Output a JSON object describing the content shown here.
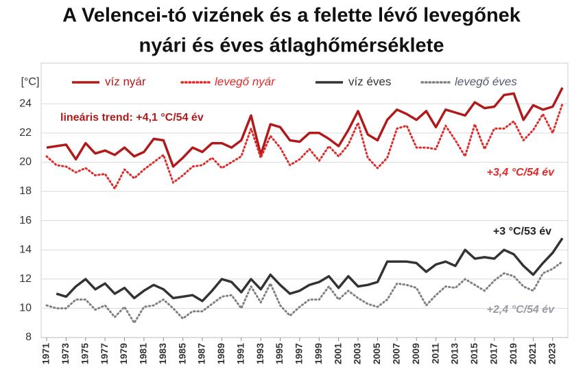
{
  "chart_data": {
    "type": "line",
    "title": "A Velencei-tó vizének és a felette lévő levegőnek",
    "subtitle": "nyári és éves átlaghőmérséklete",
    "y_label": "[°C]",
    "x": [
      1971,
      1972,
      1973,
      1974,
      1975,
      1976,
      1977,
      1978,
      1979,
      1980,
      1981,
      1982,
      1983,
      1984,
      1985,
      1986,
      1987,
      1988,
      1989,
      1990,
      1991,
      1992,
      1993,
      1994,
      1995,
      1996,
      1997,
      1998,
      1999,
      2000,
      2001,
      2002,
      2003,
      2004,
      2005,
      2006,
      2007,
      2008,
      2009,
      2010,
      2011,
      2012,
      2013,
      2014,
      2015,
      2016,
      2017,
      2018,
      2019,
      2020,
      2021,
      2022,
      2023,
      2024
    ],
    "series": [
      {
        "name": "víz nyár",
        "color": "#b01a1a",
        "dashed": false,
        "italic": false,
        "values": [
          21.0,
          21.1,
          21.2,
          20.2,
          21.3,
          20.6,
          20.8,
          20.5,
          21.0,
          20.4,
          20.7,
          21.6,
          21.5,
          19.7,
          20.3,
          21.0,
          20.7,
          21.3,
          21.3,
          21.0,
          21.5,
          23.2,
          20.5,
          22.6,
          22.4,
          21.5,
          21.4,
          22.0,
          22.0,
          21.6,
          21.1,
          22.2,
          23.5,
          21.9,
          21.5,
          22.9,
          23.6,
          23.3,
          22.9,
          23.5,
          22.4,
          23.6,
          23.4,
          23.2,
          24.1,
          23.7,
          23.8,
          24.6,
          24.7,
          22.9,
          23.9,
          23.6,
          23.8,
          25.1
        ]
      },
      {
        "name": "levegő nyár",
        "color": "#e02a2a",
        "dashed": true,
        "italic": true,
        "values": [
          20.4,
          19.8,
          19.7,
          19.3,
          19.6,
          19.1,
          19.2,
          18.2,
          19.5,
          18.9,
          19.5,
          20.0,
          20.5,
          18.6,
          19.1,
          19.7,
          19.8,
          20.3,
          19.6,
          20.0,
          20.4,
          22.3,
          20.3,
          21.8,
          21.0,
          19.8,
          20.2,
          20.9,
          20.1,
          21.1,
          20.4,
          21.2,
          22.7,
          20.3,
          19.6,
          20.3,
          22.3,
          22.5,
          21.0,
          21.0,
          20.9,
          22.5,
          21.5,
          20.4,
          22.6,
          20.9,
          22.3,
          22.3,
          22.8,
          21.5,
          22.2,
          23.3,
          22.0,
          24.0
        ]
      },
      {
        "name": "víz éves",
        "color": "#333333",
        "dashed": false,
        "italic": false,
        "values": [
          null,
          11.0,
          10.8,
          11.5,
          12.0,
          11.3,
          11.7,
          11.0,
          11.4,
          10.7,
          11.2,
          11.6,
          11.3,
          10.7,
          10.8,
          10.9,
          10.5,
          11.2,
          12.0,
          11.8,
          11.1,
          12.0,
          11.3,
          12.3,
          11.6,
          11.0,
          11.2,
          11.6,
          11.8,
          12.2,
          11.4,
          12.2,
          11.5,
          11.6,
          11.8,
          13.2,
          13.2,
          13.2,
          13.1,
          12.5,
          13.0,
          13.2,
          12.9,
          14.0,
          13.4,
          13.5,
          13.4,
          14.0,
          13.7,
          12.9,
          12.3,
          13.1,
          13.8,
          14.8
        ]
      },
      {
        "name": "levegő éves",
        "color": "#808080",
        "dashed": true,
        "italic": true,
        "values": [
          10.2,
          10.0,
          10.0,
          10.6,
          10.6,
          9.9,
          10.2,
          9.4,
          10.1,
          9.0,
          10.1,
          10.2,
          10.6,
          10.0,
          9.3,
          9.8,
          9.8,
          10.3,
          10.8,
          10.9,
          10.0,
          11.5,
          10.4,
          11.7,
          10.2,
          9.5,
          10.1,
          10.6,
          10.6,
          11.5,
          10.6,
          11.2,
          10.7,
          10.3,
          10.1,
          10.6,
          11.7,
          11.6,
          11.4,
          10.2,
          10.9,
          11.5,
          11.4,
          12.0,
          11.6,
          11.2,
          11.9,
          12.4,
          12.2,
          11.5,
          11.2,
          12.4,
          12.7,
          13.2
        ]
      }
    ],
    "annotations": [
      "lineáris trend: +4,1 °C/54 év",
      "+3,4 °C/54 év",
      "+3 °C/53 év",
      "+2,4 °C/54 év"
    ],
    "xlim": [
      1971,
      2024
    ],
    "xticks": [
      1971,
      1973,
      1975,
      1977,
      1979,
      1981,
      1983,
      1985,
      1987,
      1989,
      1991,
      1993,
      1995,
      1997,
      1999,
      2001,
      2003,
      2005,
      2007,
      2009,
      2011,
      2013,
      2015,
      2017,
      2019,
      2021,
      2023
    ],
    "ylim": [
      8,
      26.5
    ],
    "yticks": [
      8,
      10,
      12,
      14,
      16,
      18,
      20,
      22,
      24
    ],
    "grid": true
  }
}
